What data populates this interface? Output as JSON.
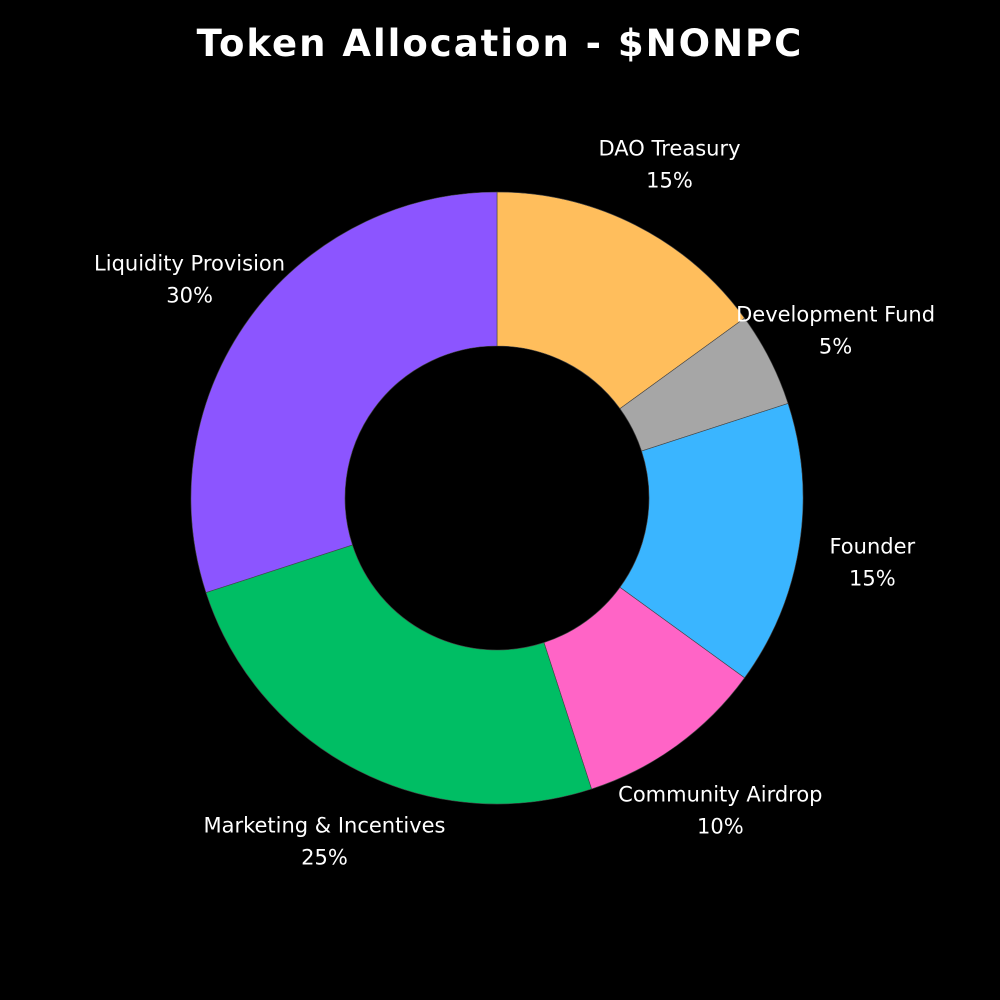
{
  "chart_data": {
    "type": "pie",
    "title": "Token Allocation - $NONPC",
    "donut": true,
    "start": "12 o'clock",
    "direction": "clockwise",
    "slices": [
      {
        "label": "DAO Treasury",
        "value": 15,
        "value_label": "15%",
        "color": "#FFBE5C"
      },
      {
        "label": "Development Fund",
        "value": 5,
        "value_label": "5%",
        "color": "#A6A6A6"
      },
      {
        "label": "Founder",
        "value": 15,
        "value_label": "15%",
        "color": "#3AB5FF"
      },
      {
        "label": "Community Airdrop",
        "value": 10,
        "value_label": "10%",
        "color": "#FF64C6"
      },
      {
        "label": "Marketing & Incentives",
        "value": 25,
        "value_label": "25%",
        "color": "#00BE64"
      },
      {
        "label": "Liquidity Provision",
        "value": 30,
        "value_label": "30%",
        "color": "#8C55FF"
      }
    ],
    "background": "#000000",
    "text_color": "#FFFFFF"
  }
}
